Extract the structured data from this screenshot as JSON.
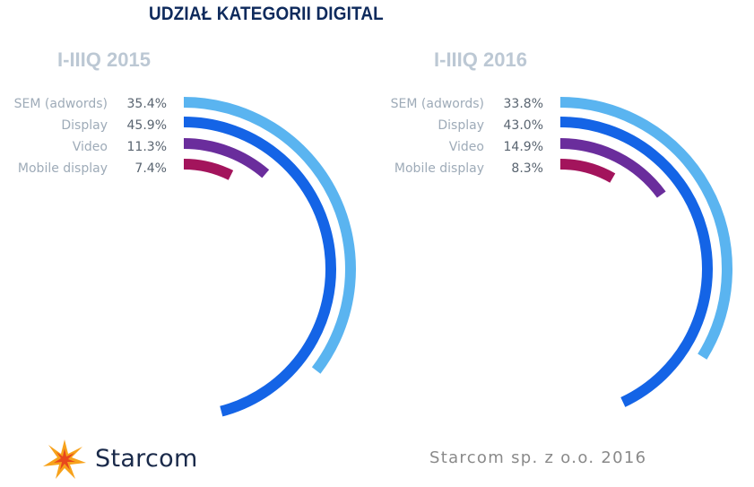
{
  "title": "UDZIAŁ KATEGORII DIGITAL",
  "brand": {
    "name": "Starcom"
  },
  "footer": {
    "copyright": "Starcom sp. z o.o. 2016"
  },
  "colors": {
    "SEM (adwords)": "#5ab4f0",
    "Display": "#1464e6",
    "Video": "#6a2d9c",
    "Mobile display": "#a3145c"
  },
  "chart_data": [
    {
      "type": "radial-bar",
      "title": "I-IIIQ 2015",
      "categories": [
        "SEM (adwords)",
        "Display",
        "Video",
        "Mobile display"
      ],
      "values": [
        35.4,
        45.9,
        11.3,
        7.4
      ],
      "value_labels": [
        "35.4%",
        "45.9%",
        "11.3%",
        "7.4%"
      ],
      "unit": "%"
    },
    {
      "type": "radial-bar",
      "title": "I-IIIQ 2016",
      "categories": [
        "SEM (adwords)",
        "Display",
        "Video",
        "Mobile display"
      ],
      "values": [
        33.8,
        43.0,
        14.9,
        8.3
      ],
      "value_labels": [
        "33.8%",
        "43.0%",
        "14.9%",
        "8.3%"
      ],
      "unit": "%"
    }
  ]
}
